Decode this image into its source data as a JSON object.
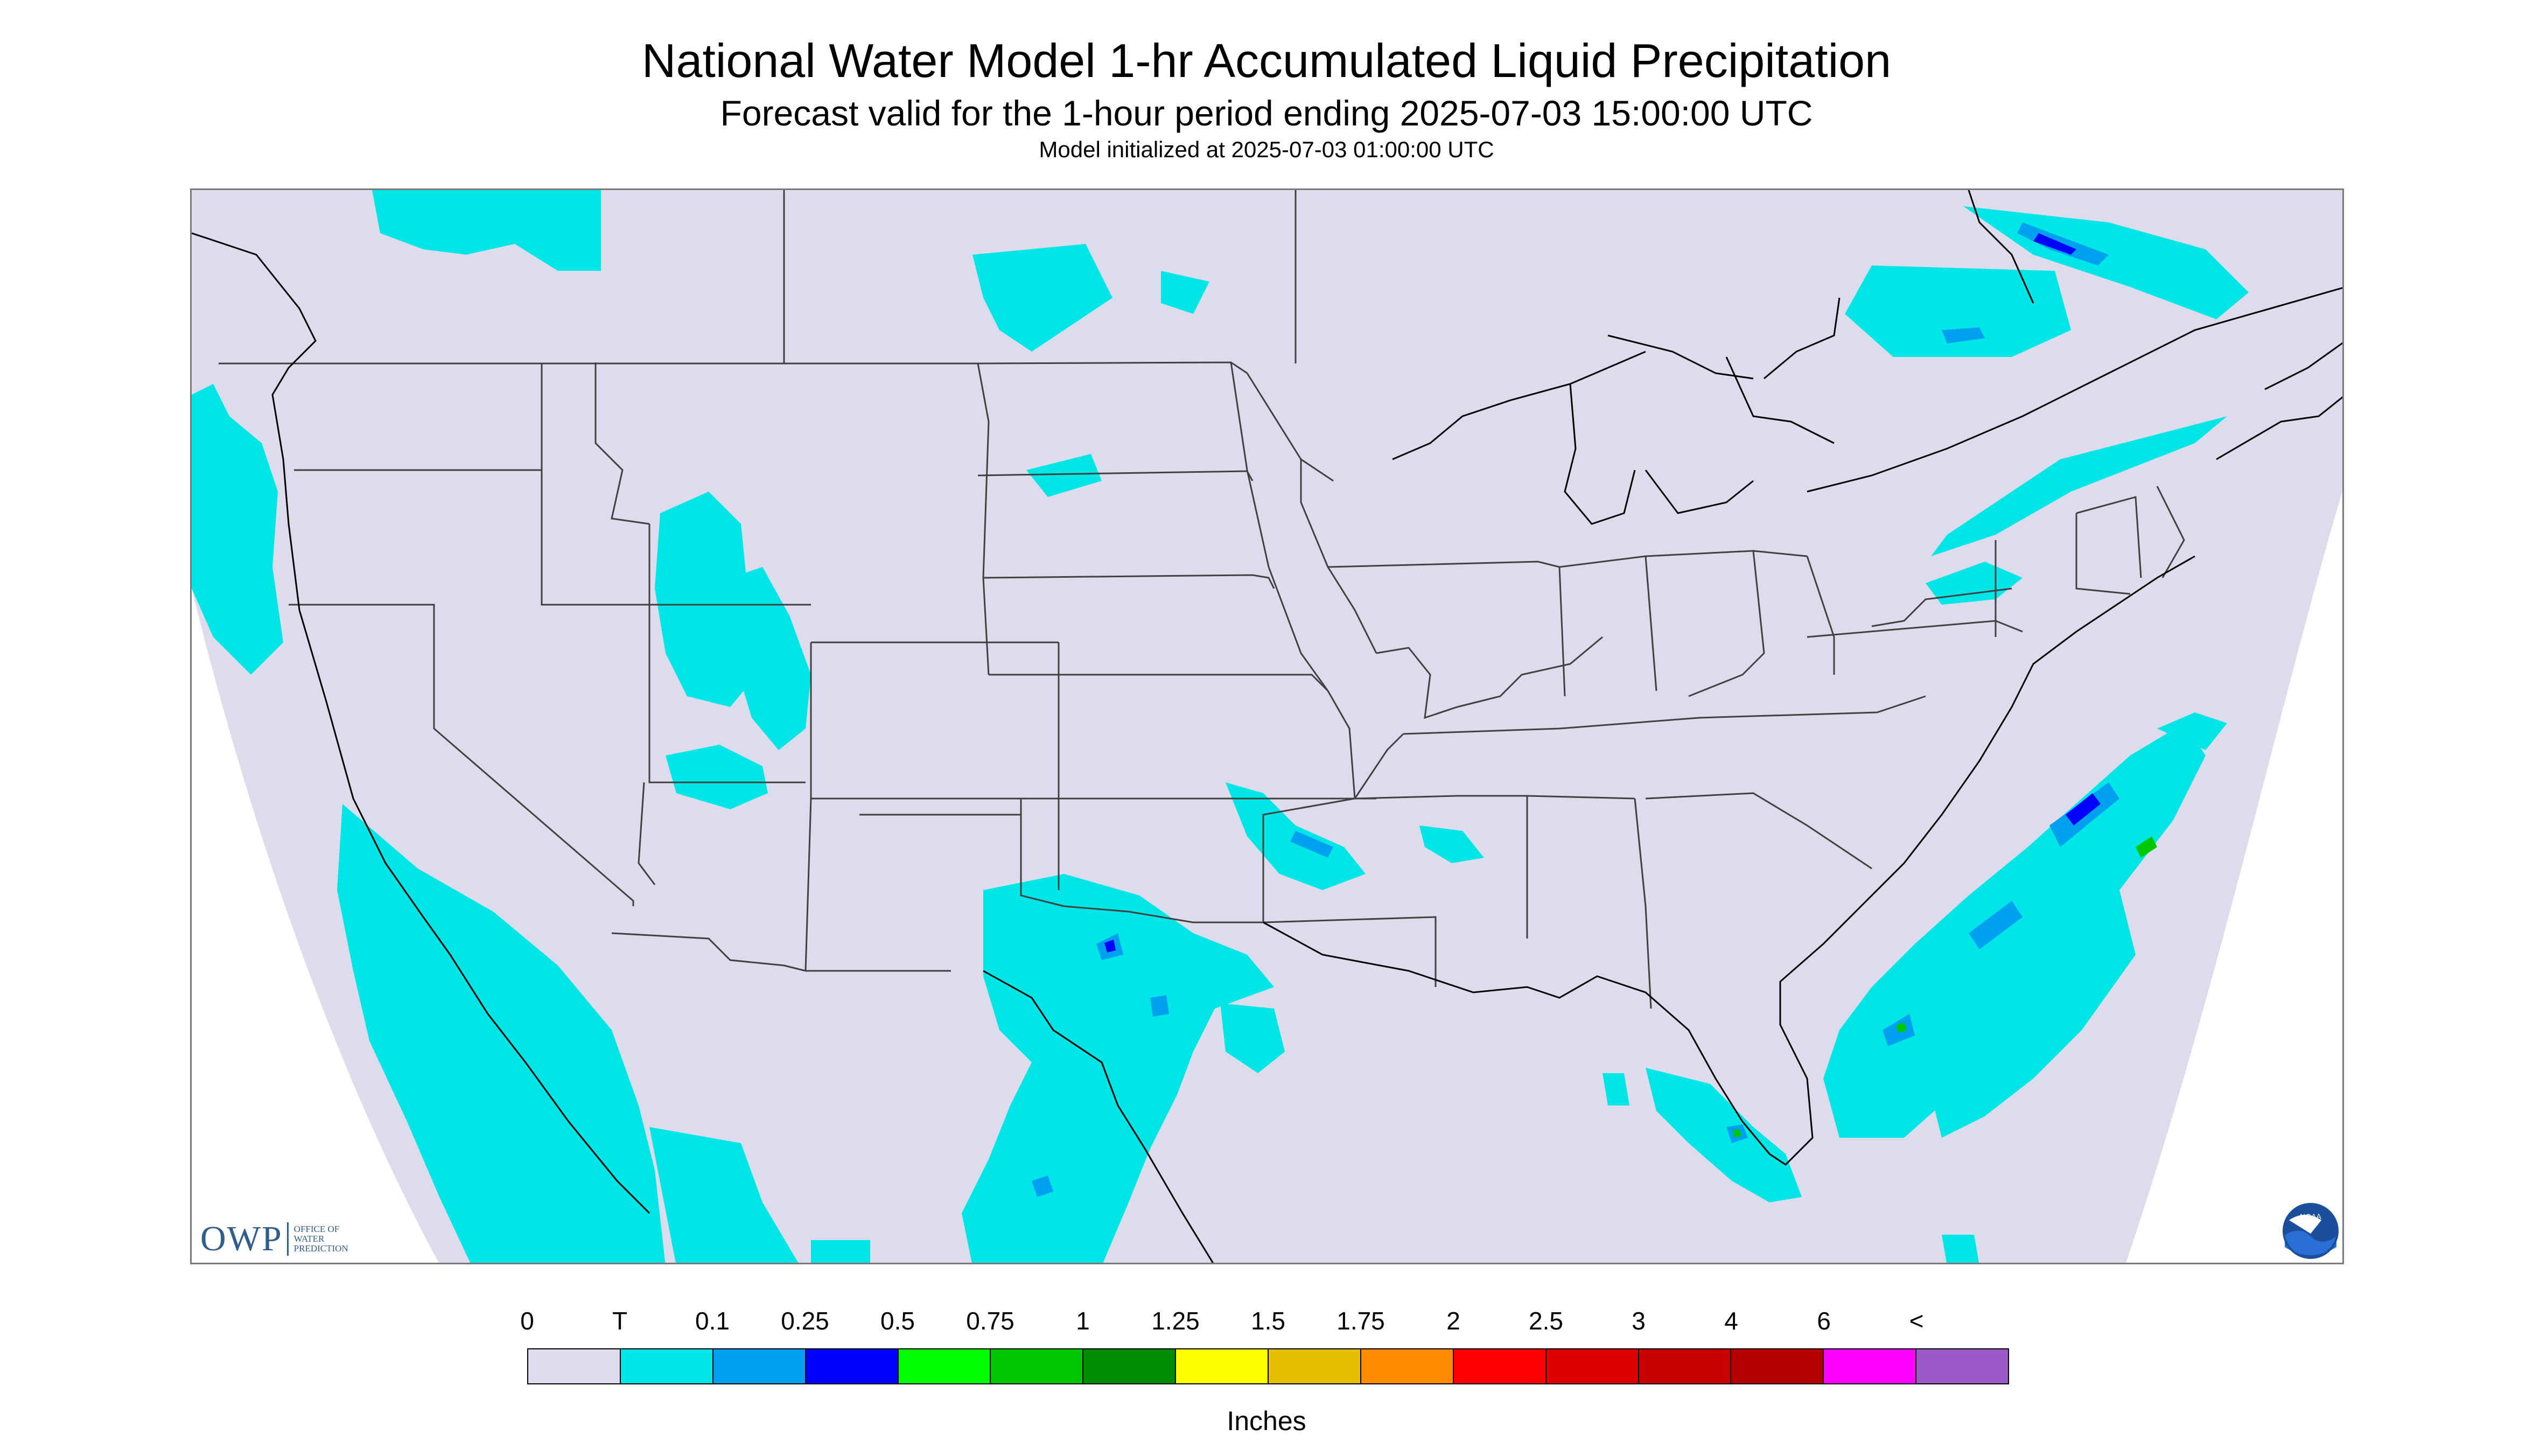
{
  "header": {
    "title": "National Water Model 1-hr Accumulated Liquid Precipitation",
    "subtitle": "Forecast valid for the 1-hour period ending 2025-07-03 15:00:00 UTC",
    "init": "Model initialized at 2025-07-03 01:00:00 UTC"
  },
  "logos": {
    "owp_mark": "OWP",
    "owp_sub": [
      "OFFICE OF",
      "WATER",
      "PREDICTION"
    ],
    "noaa_text": "NOAA"
  },
  "colors": {
    "no_data": "#ffffff",
    "background": "#dcdcec",
    "precip_trace": "#00e6e6",
    "border_lines": "#404040",
    "coastlines": "#000000"
  },
  "legend": {
    "labels": [
      "0",
      "T",
      "0.1",
      "0.25",
      "0.5",
      "0.75",
      "1",
      "1.25",
      "1.5",
      "1.75",
      "2",
      "2.5",
      "3",
      "4",
      "6",
      "<"
    ],
    "colors": [
      "#dcdcec",
      "#00e6e6",
      "#00a0f0",
      "#0000ff",
      "#00ff00",
      "#00c800",
      "#008c00",
      "#ffff00",
      "#e6be00",
      "#ff8c00",
      "#ff0000",
      "#dc0000",
      "#c80000",
      "#b40000",
      "#ff00ff",
      "#9b59c8"
    ],
    "units": "Inches"
  }
}
